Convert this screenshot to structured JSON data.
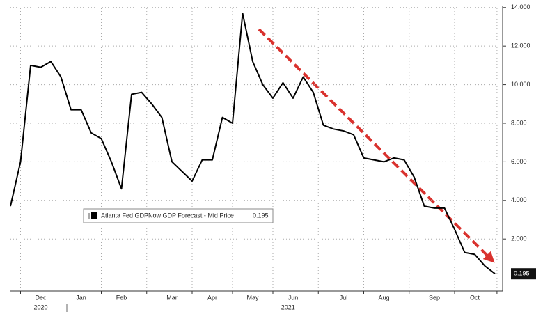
{
  "chart_data": {
    "type": "line",
    "categories": [
      null,
      null,
      null,
      "Dec",
      null,
      null,
      null,
      "Jan",
      null,
      null,
      null,
      "Feb",
      null,
      null,
      null,
      null,
      "Mar",
      null,
      null,
      null,
      "Apr",
      null,
      null,
      null,
      "May",
      null,
      null,
      null,
      "Jun",
      null,
      null,
      null,
      null,
      "Jul",
      null,
      null,
      null,
      "Aug",
      null,
      null,
      null,
      null,
      "Sep",
      null,
      null,
      null,
      "Oct",
      null,
      null
    ],
    "year_labels": [
      "2020",
      "2021"
    ],
    "series": [
      {
        "name": "Atlanta Fed GDPNow GDP Forecast - Mid Price",
        "color": "#000000",
        "values": [
          3.7,
          6.0,
          11.0,
          10.9,
          11.2,
          10.4,
          8.7,
          8.7,
          7.5,
          7.2,
          6.0,
          4.6,
          9.5,
          9.6,
          9.0,
          8.3,
          6.0,
          5.5,
          5.0,
          6.1,
          6.1,
          8.3,
          8.0,
          13.7,
          11.2,
          10.0,
          9.3,
          10.1,
          9.3,
          10.4,
          9.6,
          7.9,
          7.7,
          7.6,
          7.4,
          6.2,
          6.1,
          6.0,
          6.2,
          6.1,
          5.2,
          3.7,
          3.6,
          3.6,
          2.5,
          1.3,
          1.2,
          0.6,
          0.195
        ]
      }
    ],
    "ylim": [
      -0.7,
      14.1
    ],
    "yticks": [
      {
        "value": 2,
        "label": "2.000"
      },
      {
        "value": 4,
        "label": "4.000"
      },
      {
        "value": 6,
        "label": "6.000"
      },
      {
        "value": 8,
        "label": "8.000"
      },
      {
        "value": 10,
        "label": "10.000"
      },
      {
        "value": 12,
        "label": "12.000"
      },
      {
        "value": 14,
        "label": "14.000"
      }
    ],
    "grid": true
  }
}
